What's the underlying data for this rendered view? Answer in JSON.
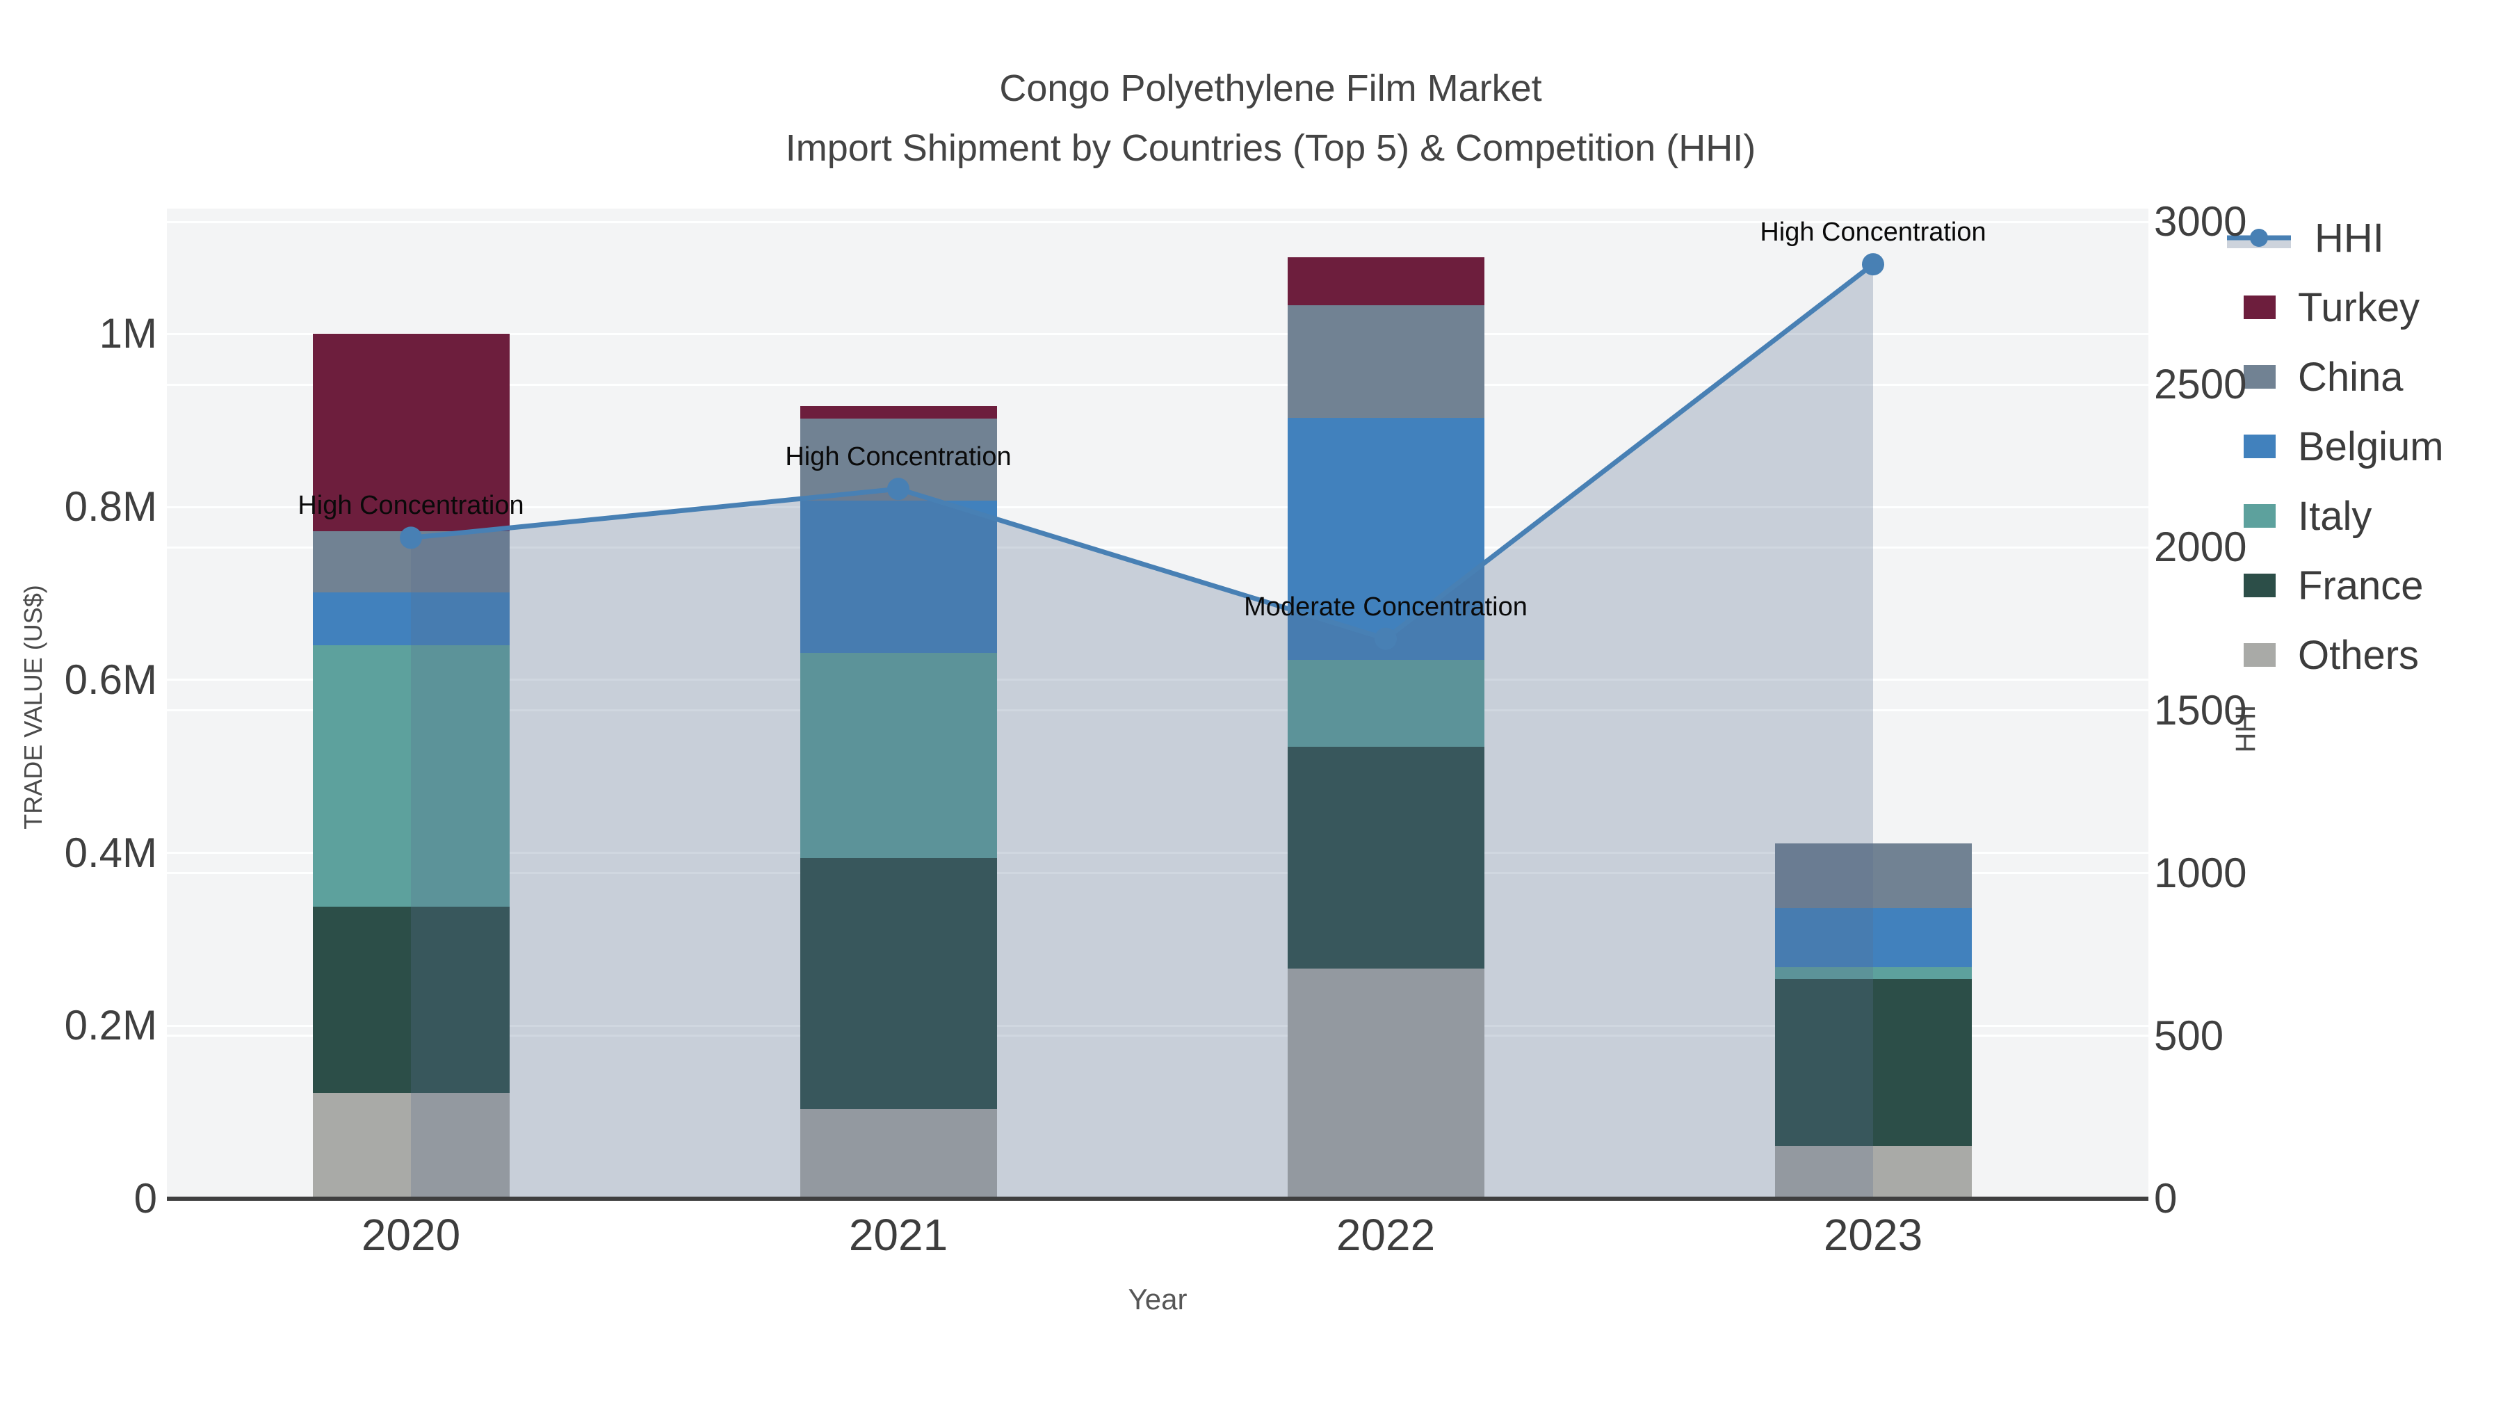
{
  "chart_data": {
    "type": "bar+line",
    "title": "Congo Polyethylene Film Market",
    "subtitle": "Import Shipment by Countries (Top 5) & Competition (HHI)",
    "xlabel": "Year",
    "ylabel_left": "TRADE VALUE (US$)",
    "ylabel_right": "HHI",
    "categories": [
      "2020",
      "2021",
      "2022",
      "2023"
    ],
    "stack_note": "bars stacked bottom-to-top: Others, France, Italy, Belgium, China, Turkey",
    "series": [
      {
        "name": "Turkey",
        "color": "#6d1e3d",
        "values": [
          228000,
          15000,
          56000,
          0
        ]
      },
      {
        "name": "China",
        "color": "#718293",
        "values": [
          71000,
          95000,
          130000,
          75000
        ]
      },
      {
        "name": "Belgium",
        "color": "#4181bd",
        "values": [
          61000,
          176000,
          280000,
          68000
        ]
      },
      {
        "name": "Italy",
        "color": "#5da19d",
        "values": [
          302000,
          237000,
          100000,
          14000
        ]
      },
      {
        "name": "France",
        "color": "#2c4e48",
        "values": [
          216000,
          290000,
          257000,
          193000
        ]
      },
      {
        "name": "Others",
        "color": "#a9aaa7",
        "values": [
          122000,
          104000,
          266000,
          61000
        ]
      }
    ],
    "hhi": {
      "name": "HHI",
      "line_color": "#4880b4",
      "area_fill": "rgba(88,112,145,0.28)",
      "legend_band_color": "#cdd3dc",
      "values": [
        2030,
        2180,
        1720,
        2870
      ]
    },
    "annotations": [
      {
        "x": "2020",
        "text": "High Concentration"
      },
      {
        "x": "2021",
        "text": "High Concentration"
      },
      {
        "x": "2022",
        "text": "Moderate Concentration"
      },
      {
        "x": "2023",
        "text": "High Concentration"
      }
    ],
    "y_left": {
      "ticks": [
        "0",
        "0.2M",
        "0.4M",
        "0.6M",
        "0.8M",
        "1M"
      ],
      "tick_values": [
        0,
        200000,
        400000,
        600000,
        800000,
        1000000
      ],
      "max": 1145000
    },
    "y_right": {
      "ticks": [
        "0",
        "500",
        "1000",
        "1500",
        "2000",
        "2500",
        "3000"
      ],
      "tick_values": [
        0,
        500,
        1000,
        1500,
        2000,
        2500,
        3000
      ],
      "max": 3041
    },
    "legend_order": [
      "HHI",
      "Turkey",
      "China",
      "Belgium",
      "Italy",
      "France",
      "Others"
    ],
    "grid": "on",
    "legend_position": "top-right-outside",
    "plot_bg": "#f3f4f5",
    "axis_line_color": "#3f3f3f"
  }
}
